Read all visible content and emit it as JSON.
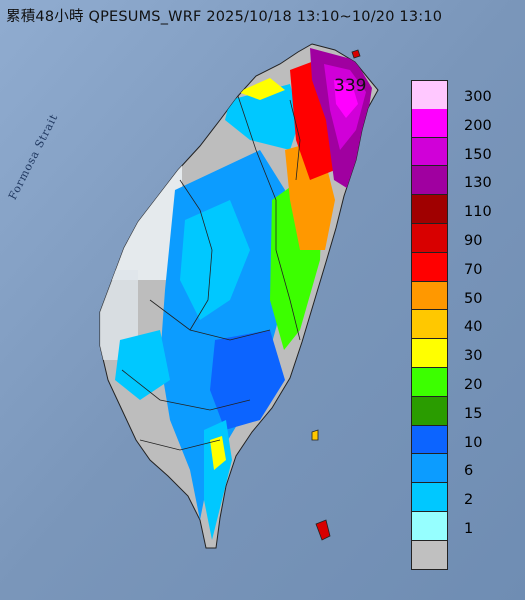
{
  "title": "累積48小時 QPESUMS_WRF 2025/10/18 13:10~10/20 13:10",
  "water_label": "Formosa Strait",
  "peak_value": "339",
  "legend": {
    "bins": [
      {
        "label": "300",
        "color": "#ffc8ff"
      },
      {
        "label": "200",
        "color": "#ff00ff"
      },
      {
        "label": "150",
        "color": "#d000d8"
      },
      {
        "label": "130",
        "color": "#a000a0"
      },
      {
        "label": "110",
        "color": "#a00000"
      },
      {
        "label": "90",
        "color": "#d80000"
      },
      {
        "label": "70",
        "color": "#ff0000"
      },
      {
        "label": "50",
        "color": "#ff9800"
      },
      {
        "label": "40",
        "color": "#ffc800"
      },
      {
        "label": "30",
        "color": "#ffff00"
      },
      {
        "label": "20",
        "color": "#3cff00"
      },
      {
        "label": "15",
        "color": "#2a9c00"
      },
      {
        "label": "10",
        "color": "#0c64ff"
      },
      {
        "label": "6",
        "color": "#0c9cff"
      },
      {
        "label": "2",
        "color": "#00c8ff"
      },
      {
        "label": "1",
        "color": "#96ffff"
      },
      {
        "label": "",
        "color": "#c0c0c0"
      }
    ]
  }
}
